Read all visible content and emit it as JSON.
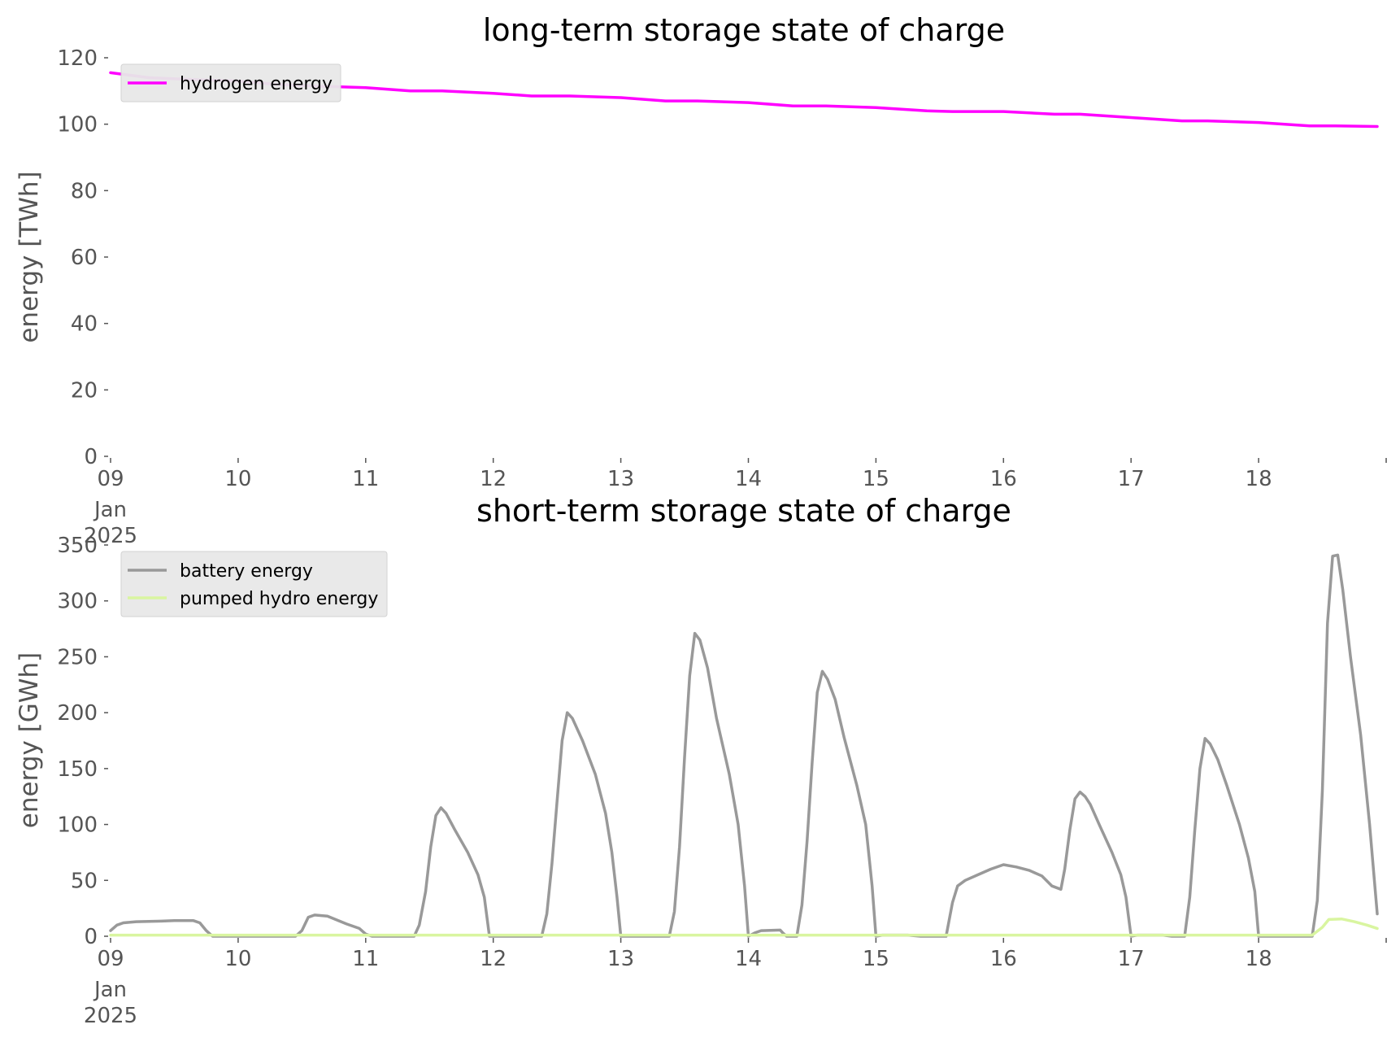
{
  "colors": {
    "hydrogen": "#ff00ff",
    "battery": "#999999",
    "pumped_hydro": "#d9f5a0",
    "legend_bg": "#e8e8e8",
    "tick_text": "#555555"
  },
  "x_axis": {
    "ticks": [
      {
        "x": 9,
        "label": "09",
        "sublabel_1": "Jan",
        "sublabel_2": "2025"
      },
      {
        "x": 10,
        "label": "10"
      },
      {
        "x": 11,
        "label": "11"
      },
      {
        "x": 12,
        "label": "12"
      },
      {
        "x": 13,
        "label": "13"
      },
      {
        "x": 14,
        "label": "14"
      },
      {
        "x": 15,
        "label": "15"
      },
      {
        "x": 16,
        "label": "16"
      },
      {
        "x": 17,
        "label": "17"
      },
      {
        "x": 18,
        "label": "18"
      },
      {
        "x": 19,
        "label": ""
      }
    ]
  },
  "chart_data": [
    {
      "type": "line",
      "title": "long-term storage state of charge",
      "ylabel": "energy [TWh]",
      "xlabel": "",
      "xlim": [
        9,
        18.93
      ],
      "ylim": [
        0,
        120
      ],
      "yticks": [
        0,
        20,
        40,
        60,
        80,
        100,
        120
      ],
      "grid": false,
      "legend": "top-left",
      "series": [
        {
          "name": "hydrogen energy",
          "color_key": "hydrogen",
          "points": [
            [
              9.0,
              115.5
            ],
            [
              9.3,
              114.0
            ],
            [
              9.6,
              113.5
            ],
            [
              10.0,
              113.0
            ],
            [
              10.3,
              112.0
            ],
            [
              10.6,
              111.5
            ],
            [
              11.0,
              111.0
            ],
            [
              11.35,
              110.0
            ],
            [
              11.6,
              110.0
            ],
            [
              12.0,
              109.3
            ],
            [
              12.3,
              108.5
            ],
            [
              12.6,
              108.5
            ],
            [
              13.0,
              108.0
            ],
            [
              13.35,
              107.0
            ],
            [
              13.6,
              107.0
            ],
            [
              14.0,
              106.5
            ],
            [
              14.35,
              105.5
            ],
            [
              14.6,
              105.5
            ],
            [
              15.0,
              105.0
            ],
            [
              15.4,
              104.0
            ],
            [
              15.6,
              103.8
            ],
            [
              16.0,
              103.8
            ],
            [
              16.4,
              103.0
            ],
            [
              16.6,
              103.0
            ],
            [
              17.0,
              102.0
            ],
            [
              17.4,
              101.0
            ],
            [
              17.6,
              101.0
            ],
            [
              18.0,
              100.5
            ],
            [
              18.4,
              99.5
            ],
            [
              18.6,
              99.5
            ],
            [
              18.93,
              99.3
            ]
          ]
        }
      ]
    },
    {
      "type": "line",
      "title": "short-term storage state of charge",
      "ylabel": "energy [GWh]",
      "xlabel": "",
      "xlim": [
        9,
        18.93
      ],
      "ylim": [
        0,
        350
      ],
      "yticks": [
        0,
        50,
        100,
        150,
        200,
        250,
        300,
        350
      ],
      "grid": false,
      "legend": "top-left",
      "series": [
        {
          "name": "battery energy",
          "color_key": "battery",
          "points": [
            [
              9.0,
              5
            ],
            [
              9.05,
              10
            ],
            [
              9.1,
              12
            ],
            [
              9.2,
              13
            ],
            [
              9.4,
              13.5
            ],
            [
              9.5,
              14
            ],
            [
              9.65,
              14
            ],
            [
              9.7,
              12
            ],
            [
              9.75,
              5
            ],
            [
              9.8,
              0
            ],
            [
              10.0,
              0
            ],
            [
              10.45,
              0
            ],
            [
              10.5,
              5
            ],
            [
              10.55,
              17
            ],
            [
              10.6,
              19
            ],
            [
              10.7,
              18
            ],
            [
              10.85,
              11
            ],
            [
              10.95,
              7
            ],
            [
              11.0,
              2
            ],
            [
              11.05,
              0
            ],
            [
              11.38,
              0
            ],
            [
              11.42,
              10
            ],
            [
              11.47,
              40
            ],
            [
              11.51,
              80
            ],
            [
              11.55,
              108
            ],
            [
              11.59,
              115
            ],
            [
              11.63,
              110
            ],
            [
              11.7,
              95
            ],
            [
              11.8,
              75
            ],
            [
              11.88,
              55
            ],
            [
              11.93,
              35
            ],
            [
              11.97,
              0
            ],
            [
              12.38,
              0
            ],
            [
              12.42,
              20
            ],
            [
              12.46,
              65
            ],
            [
              12.5,
              120
            ],
            [
              12.54,
              175
            ],
            [
              12.58,
              200
            ],
            [
              12.62,
              195
            ],
            [
              12.7,
              175
            ],
            [
              12.8,
              145
            ],
            [
              12.88,
              110
            ],
            [
              12.93,
              75
            ],
            [
              12.97,
              35
            ],
            [
              13.0,
              0
            ],
            [
              13.38,
              0
            ],
            [
              13.42,
              22
            ],
            [
              13.46,
              80
            ],
            [
              13.5,
              160
            ],
            [
              13.54,
              233
            ],
            [
              13.58,
              271
            ],
            [
              13.62,
              265
            ],
            [
              13.68,
              240
            ],
            [
              13.75,
              195
            ],
            [
              13.85,
              145
            ],
            [
              13.92,
              100
            ],
            [
              13.97,
              45
            ],
            [
              14.0,
              0
            ],
            [
              14.05,
              3
            ],
            [
              14.1,
              5
            ],
            [
              14.25,
              5.5
            ],
            [
              14.27,
              3
            ],
            [
              14.3,
              0
            ],
            [
              14.38,
              0
            ],
            [
              14.42,
              28
            ],
            [
              14.46,
              85
            ],
            [
              14.5,
              155
            ],
            [
              14.54,
              218
            ],
            [
              14.58,
              237
            ],
            [
              14.62,
              230
            ],
            [
              14.68,
              212
            ],
            [
              14.75,
              178
            ],
            [
              14.85,
              135
            ],
            [
              14.92,
              100
            ],
            [
              14.97,
              45
            ],
            [
              15.0,
              0
            ],
            [
              15.05,
              1
            ],
            [
              15.25,
              1
            ],
            [
              15.35,
              0
            ],
            [
              15.55,
              0
            ],
            [
              15.6,
              30
            ],
            [
              15.64,
              45
            ],
            [
              15.7,
              50
            ],
            [
              15.8,
              55
            ],
            [
              15.9,
              60
            ],
            [
              16.0,
              64
            ],
            [
              16.1,
              62
            ],
            [
              16.2,
              59
            ],
            [
              16.3,
              54
            ],
            [
              16.38,
              45
            ],
            [
              16.45,
              42
            ],
            [
              16.48,
              60
            ],
            [
              16.52,
              95
            ],
            [
              16.56,
              123
            ],
            [
              16.6,
              129
            ],
            [
              16.64,
              125
            ],
            [
              16.68,
              118
            ],
            [
              16.75,
              100
            ],
            [
              16.85,
              75
            ],
            [
              16.92,
              55
            ],
            [
              16.96,
              35
            ],
            [
              17.0,
              0
            ],
            [
              17.05,
              1
            ],
            [
              17.25,
              1
            ],
            [
              17.32,
              0
            ],
            [
              17.42,
              0
            ],
            [
              17.46,
              35
            ],
            [
              17.5,
              95
            ],
            [
              17.54,
              150
            ],
            [
              17.58,
              177
            ],
            [
              17.62,
              172
            ],
            [
              17.68,
              158
            ],
            [
              17.75,
              135
            ],
            [
              17.85,
              100
            ],
            [
              17.92,
              70
            ],
            [
              17.97,
              40
            ],
            [
              18.0,
              0
            ],
            [
              18.42,
              0
            ],
            [
              18.46,
              32
            ],
            [
              18.5,
              130
            ],
            [
              18.54,
              280
            ],
            [
              18.58,
              340
            ],
            [
              18.62,
              341
            ],
            [
              18.66,
              310
            ],
            [
              18.72,
              250
            ],
            [
              18.8,
              180
            ],
            [
              18.87,
              100
            ],
            [
              18.93,
              20
            ]
          ]
        },
        {
          "name": "pumped hydro energy",
          "color_key": "pumped_hydro",
          "points": [
            [
              9.0,
              1
            ],
            [
              18.42,
              1
            ],
            [
              18.5,
              8
            ],
            [
              18.55,
              15
            ],
            [
              18.65,
              15.5
            ],
            [
              18.75,
              13
            ],
            [
              18.85,
              10
            ],
            [
              18.93,
              7
            ]
          ]
        }
      ]
    }
  ]
}
